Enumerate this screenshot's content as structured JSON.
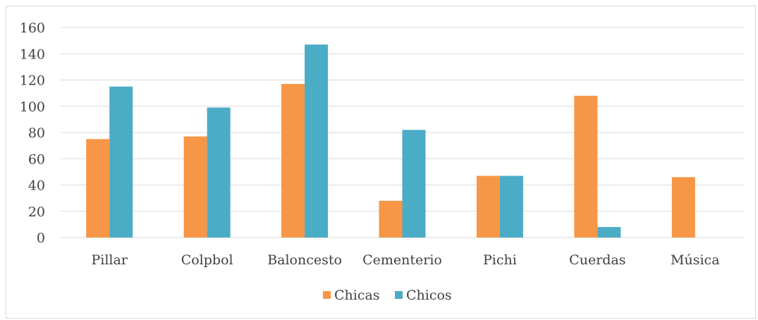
{
  "chart_data": {
    "type": "bar",
    "categories": [
      "Pillar",
      "Colpbol",
      "Baloncesto",
      "Cementerio",
      "Pichi",
      "Cuerdas",
      "Música"
    ],
    "series": [
      {
        "name": "Chicas",
        "values": [
          75,
          77,
          117,
          28,
          47,
          108,
          46
        ],
        "color": "#f79646"
      },
      {
        "name": "Chicos",
        "values": [
          115,
          99,
          147,
          82,
          47,
          8,
          0
        ],
        "color": "#4bacc6"
      }
    ],
    "ylim": [
      0,
      160
    ],
    "yticks": [
      0,
      20,
      40,
      60,
      80,
      100,
      120,
      140,
      160
    ],
    "grid": true,
    "legend_position": "bottom",
    "title": "",
    "xlabel": "",
    "ylabel": ""
  }
}
